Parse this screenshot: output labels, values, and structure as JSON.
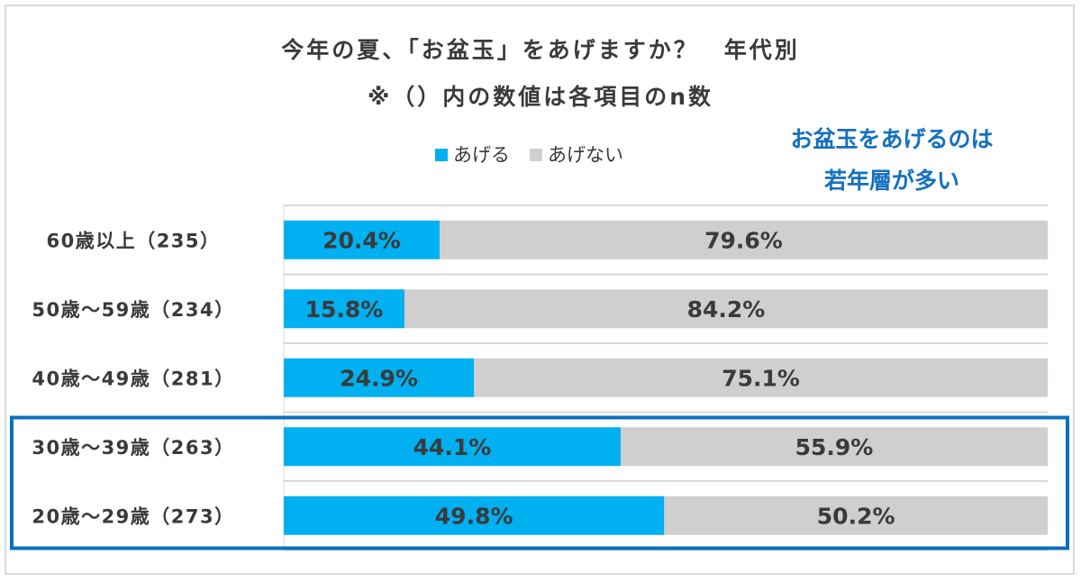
{
  "chart_data": {
    "type": "bar",
    "stacked": true,
    "orientation": "horizontal",
    "title": "今年の夏、「お盆玉」をあげますか？　年代別",
    "subtitle": "※（）内の数値は各項目のn数",
    "categories": [
      "60歳以上（235）",
      "50歳～59歳（234）",
      "40歳～49歳（281）",
      "30歳～39歳（263）",
      "20歳～29歳（273）"
    ],
    "series": [
      {
        "name": "あげる",
        "color": "#00b0f0",
        "values": [
          20.4,
          15.8,
          24.9,
          44.1,
          49.8
        ]
      },
      {
        "name": "あげない",
        "color": "#d0cece",
        "values": [
          79.6,
          84.2,
          75.1,
          55.9,
          50.2
        ]
      }
    ],
    "xlim": [
      0,
      100
    ],
    "value_format": "percent, 1 decimal",
    "legend_position": "top",
    "annotation": {
      "lines": [
        "お盆玉をあげるのは",
        "若年層が多い"
      ],
      "color": "#1470bf"
    },
    "highlight": {
      "categories": [
        "30歳～39歳（263）",
        "20歳～29歳（273）"
      ],
      "color": "#0a6ebd"
    }
  }
}
